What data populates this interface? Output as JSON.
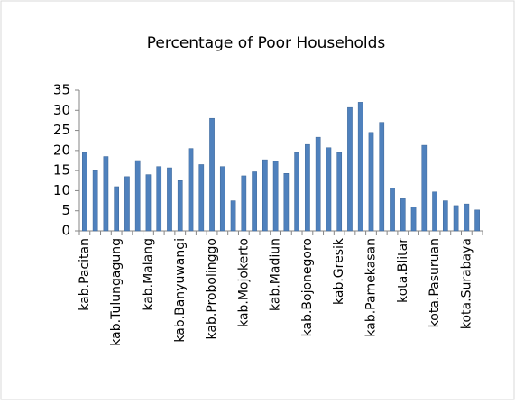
{
  "chart_data": {
    "type": "bar",
    "title": "Percentage of Poor Households",
    "categories": [
      "kab.Pacitan",
      null,
      null,
      "kab.Tulungagung",
      null,
      null,
      "kab.Malang",
      null,
      null,
      "kab.Banyuwangi",
      null,
      null,
      "kab.Probolinggo",
      null,
      null,
      "kab.Mojokerto",
      null,
      null,
      "kab.Madiun",
      null,
      null,
      "kab.Bojonegoro",
      null,
      null,
      "kab.Gresik",
      null,
      null,
      "kab.Pamekasan",
      null,
      null,
      "kota.Blitar",
      null,
      null,
      "kota.Pasuruan",
      null,
      null,
      "kota.Surabaya",
      null
    ],
    "values": [
      19.5,
      15,
      18.5,
      11,
      13.5,
      17.5,
      14,
      16,
      15.7,
      12.5,
      20.5,
      16.5,
      28,
      16,
      7.5,
      13.7,
      14.7,
      17.7,
      17.3,
      14.3,
      19.5,
      21.5,
      23.3,
      20.7,
      19.5,
      30.7,
      32,
      24.5,
      27,
      10.7,
      8,
      6,
      21.3,
      9.7,
      7.5,
      6.3,
      6.7,
      5.2
    ],
    "color": "#4f81bd",
    "ylim": [
      0,
      35
    ],
    "yticks": [
      0,
      5,
      10,
      15,
      20,
      25,
      30,
      35
    ]
  }
}
